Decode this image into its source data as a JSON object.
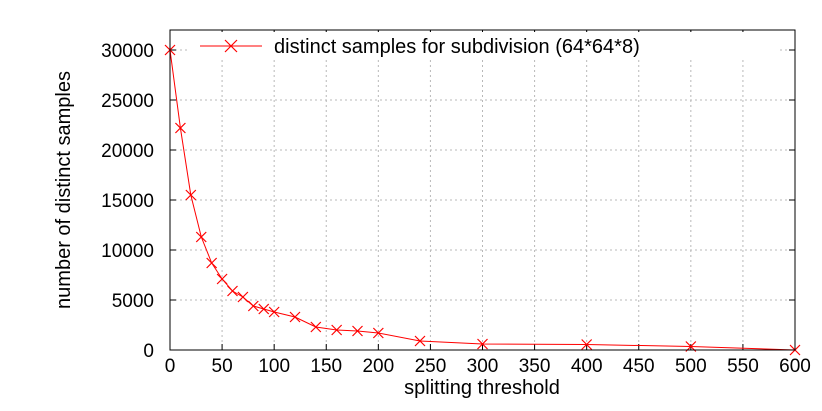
{
  "chart_data": {
    "type": "line",
    "title": "",
    "xlabel": "splitting threshold",
    "ylabel": "number of distinct samples",
    "xlim": [
      0,
      600
    ],
    "ylim": [
      0,
      32000
    ],
    "xticks": [
      0,
      50,
      100,
      150,
      200,
      250,
      300,
      350,
      400,
      450,
      500,
      550,
      600
    ],
    "yticks": [
      0,
      5000,
      10000,
      15000,
      20000,
      25000,
      30000
    ],
    "xtick_labels": [
      "0",
      "50",
      "100",
      "150",
      "200",
      "250",
      "300",
      "350",
      "400",
      "450",
      "500",
      "550",
      "600"
    ],
    "ytick_labels": [
      "0",
      "5000",
      "10000",
      "15000",
      "20000",
      "25000",
      "30000"
    ],
    "grid": true,
    "legend_position": "top",
    "series": [
      {
        "name": "distinct samples for subdivision (64*64*8)",
        "color": "#ff0000",
        "marker": "x",
        "x": [
          0,
          10,
          20,
          30,
          40,
          50,
          60,
          70,
          80,
          90,
          100,
          120,
          140,
          160,
          180,
          200,
          240,
          300,
          400,
          500,
          600
        ],
        "y": [
          30000,
          22200,
          15500,
          11300,
          8700,
          7100,
          5900,
          5300,
          4400,
          4100,
          3800,
          3300,
          2300,
          2000,
          1900,
          1700,
          900,
          600,
          550,
          350,
          0
        ]
      }
    ]
  }
}
